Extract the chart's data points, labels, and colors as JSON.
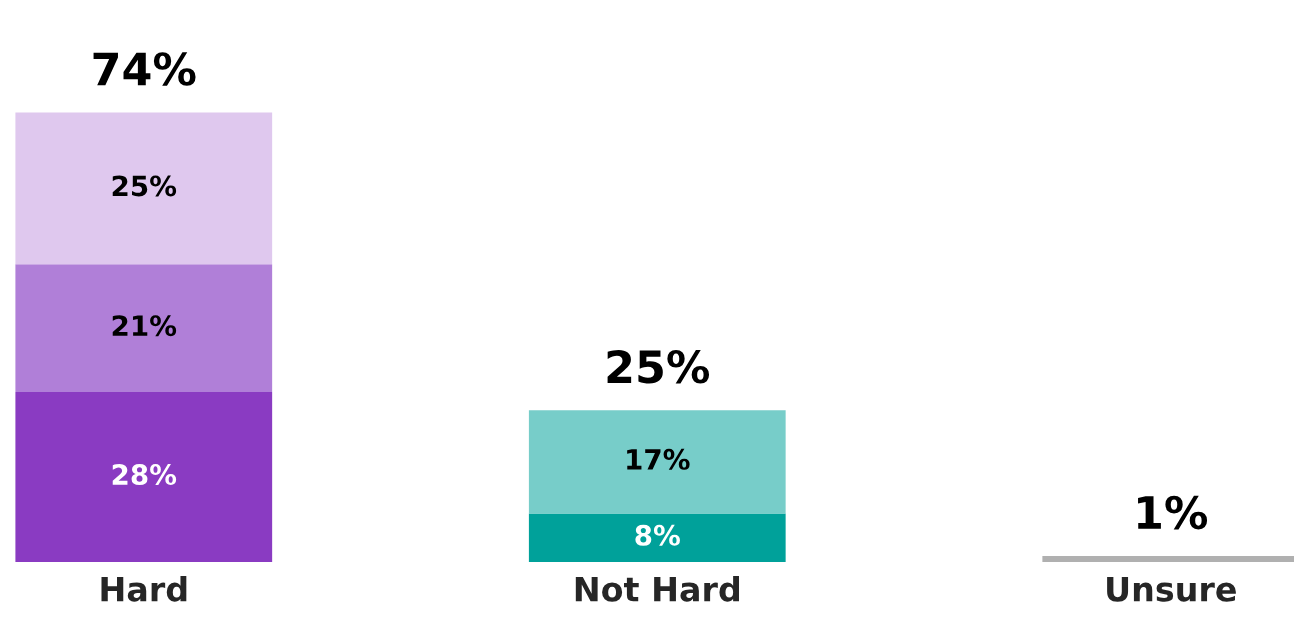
{
  "chart_data": {
    "type": "bar",
    "stacked": true,
    "categories": [
      "Hard",
      "Not Hard",
      "Unsure"
    ],
    "series": [
      {
        "colors": [
          "#8a3bc2",
          "#00a19a",
          "#b0b0b0"
        ],
        "values": [
          28,
          8,
          1
        ],
        "value_labels": [
          "28%",
          "8%",
          null
        ]
      },
      {
        "colors": [
          "#b07fd8",
          "#77cdc9",
          null
        ],
        "values": [
          21,
          17,
          null
        ],
        "value_labels": [
          "21%",
          "17%",
          null
        ]
      },
      {
        "colors": [
          "#dfc8ee",
          null,
          null
        ],
        "values": [
          25,
          null,
          null
        ],
        "value_labels": [
          "25%",
          null,
          null
        ]
      }
    ],
    "totals": [
      "74%",
      "25%",
      "1%"
    ],
    "grid": false,
    "legend": false
  }
}
